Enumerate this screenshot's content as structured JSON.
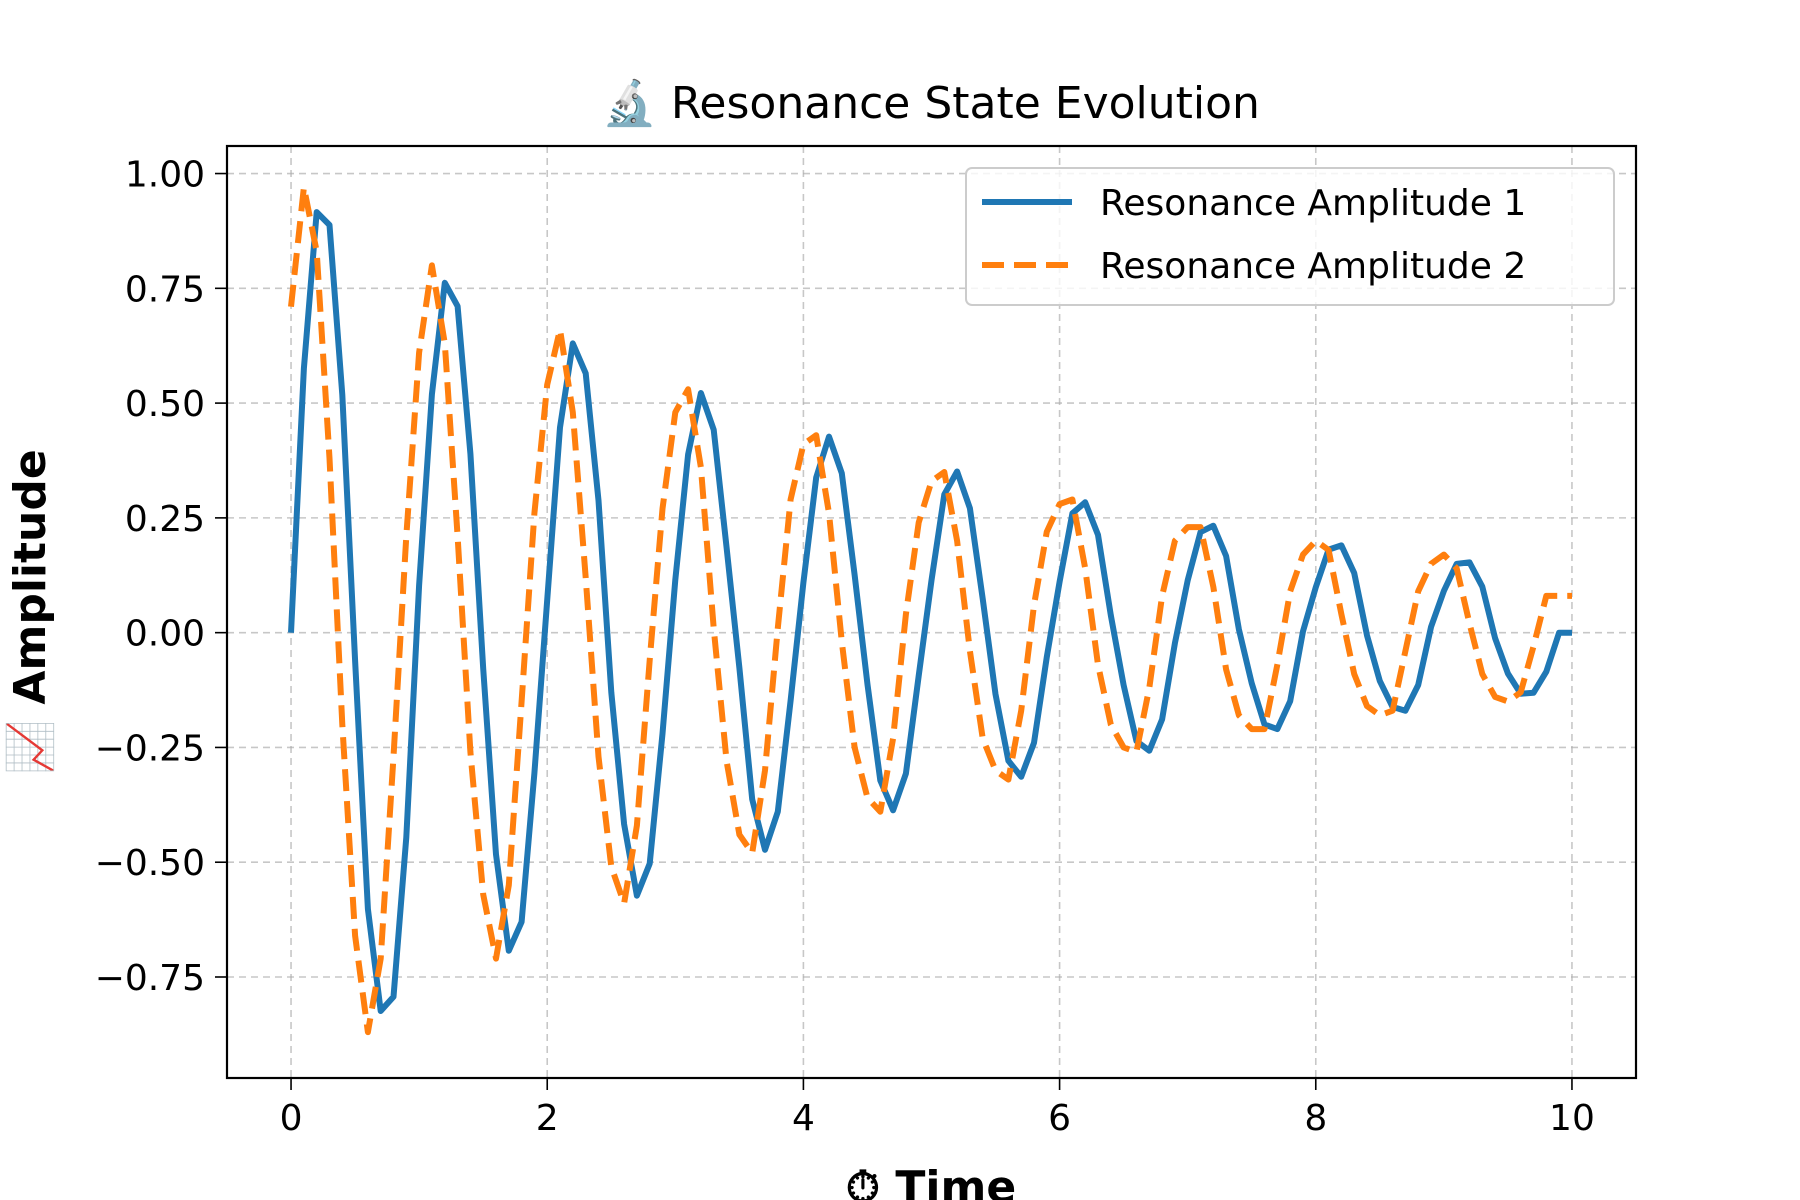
{
  "chart_data": {
    "type": "line",
    "title": "🔬 Resonance State Evolution",
    "xlabel": "⏱ Time",
    "ylabel": "📈 Amplitude",
    "xlim": [
      -0.5,
      10.5
    ],
    "ylim": [
      -0.97,
      1.06
    ],
    "x_ticks": [
      0,
      2,
      4,
      6,
      8,
      10
    ],
    "x_tick_labels": [
      "0",
      "2",
      "4",
      "6",
      "8",
      "10"
    ],
    "y_ticks": [
      -0.75,
      -0.5,
      -0.25,
      0.0,
      0.25,
      0.5,
      0.75,
      1.0
    ],
    "y_tick_labels": [
      "−0.75",
      "−0.50",
      "−0.25",
      "0.00",
      "0.25",
      "0.50",
      "0.75",
      "1.00"
    ],
    "grid": true,
    "legend_position": "top-right",
    "x": [
      0.0,
      0.1,
      0.2,
      0.3,
      0.4,
      0.5,
      0.6,
      0.7,
      0.8,
      0.9,
      1.0,
      1.1,
      1.2,
      1.3,
      1.4,
      1.5,
      1.6,
      1.7,
      1.8,
      1.9,
      2.0,
      2.1,
      2.2,
      2.3,
      2.4,
      2.5,
      2.6,
      2.7,
      2.8,
      2.9,
      3.0,
      3.1,
      3.2,
      3.3,
      3.4,
      3.5,
      3.6,
      3.7,
      3.8,
      3.9,
      4.0,
      4.1,
      4.2,
      4.3,
      4.4,
      4.5,
      4.6,
      4.7,
      4.8,
      4.9,
      5.0,
      5.1,
      5.2,
      5.3,
      5.4,
      5.5,
      5.6,
      5.7,
      5.8,
      5.9,
      6.0,
      6.1,
      6.2,
      6.3,
      6.4,
      6.5,
      6.6,
      6.7,
      6.8,
      6.9,
      7.0,
      7.1,
      7.2,
      7.3,
      7.4,
      7.5,
      7.6,
      7.7,
      7.8,
      7.9,
      8.0,
      8.1,
      8.2,
      8.3,
      8.4,
      8.5,
      8.6,
      8.7,
      8.8,
      8.9,
      9.0,
      9.1,
      9.2,
      9.3,
      9.4,
      9.5,
      9.6,
      9.7,
      9.8,
      9.9,
      10.0
    ],
    "series": [
      {
        "name": "Resonance Amplitude 1",
        "color": "#1f77b4",
        "style": "solid",
        "values": [
          0.0,
          0.576,
          0.916,
          0.888,
          0.518,
          -0.061,
          -0.602,
          -0.824,
          -0.793,
          -0.446,
          0.103,
          0.519,
          0.762,
          0.711,
          0.39,
          -0.078,
          -0.483,
          -0.693,
          -0.63,
          -0.306,
          0.071,
          0.447,
          0.63,
          0.565,
          0.288,
          -0.13,
          -0.417,
          -0.573,
          -0.503,
          -0.22,
          0.115,
          0.388,
          0.522,
          0.442,
          0.185,
          -0.077,
          -0.363,
          -0.473,
          -0.39,
          -0.148,
          0.109,
          0.338,
          0.427,
          0.347,
          0.126,
          -0.113,
          -0.322,
          -0.387,
          -0.307,
          -0.094,
          0.114,
          0.301,
          0.351,
          0.271,
          0.074,
          -0.134,
          -0.279,
          -0.314,
          -0.24,
          -0.053,
          0.111,
          0.26,
          0.284,
          0.213,
          0.038,
          -0.114,
          -0.236,
          -0.257,
          -0.189,
          -0.023,
          0.114,
          0.219,
          0.233,
          0.167,
          0.007,
          -0.11,
          -0.2,
          -0.21,
          -0.149,
          0.003,
          0.099,
          0.181,
          0.19,
          0.13,
          -0.006,
          -0.105,
          -0.162,
          -0.17,
          -0.114,
          0.013,
          0.091,
          0.15,
          0.153,
          0.1,
          -0.012,
          -0.089,
          -0.133,
          -0.131,
          -0.085,
          0.0,
          0.0
        ]
      },
      {
        "name": "Resonance Amplitude 2",
        "color": "#ff7f0e",
        "style": "dashed",
        "values": [
          0.71,
          0.97,
          0.83,
          0.38,
          -0.2,
          -0.66,
          -0.87,
          -0.71,
          -0.27,
          0.21,
          0.61,
          0.8,
          0.63,
          0.21,
          -0.26,
          -0.57,
          -0.71,
          -0.55,
          -0.15,
          0.26,
          0.54,
          0.66,
          0.48,
          0.12,
          -0.27,
          -0.51,
          -0.59,
          -0.42,
          -0.06,
          0.27,
          0.48,
          0.53,
          0.36,
          0.01,
          -0.28,
          -0.44,
          -0.48,
          -0.3,
          0.01,
          0.29,
          0.41,
          0.43,
          0.26,
          -0.02,
          -0.25,
          -0.36,
          -0.39,
          -0.23,
          0.04,
          0.24,
          0.33,
          0.35,
          0.2,
          -0.04,
          -0.23,
          -0.3,
          -0.32,
          -0.17,
          0.06,
          0.22,
          0.28,
          0.29,
          0.14,
          -0.07,
          -0.2,
          -0.25,
          -0.26,
          -0.12,
          0.08,
          0.2,
          0.23,
          0.23,
          0.1,
          -0.08,
          -0.18,
          -0.21,
          -0.21,
          -0.07,
          0.09,
          0.17,
          0.2,
          0.18,
          0.04,
          -0.09,
          -0.16,
          -0.18,
          -0.17,
          -0.04,
          0.09,
          0.15,
          0.17,
          0.14,
          0.02,
          -0.09,
          -0.14,
          -0.15,
          -0.13,
          -0.03,
          0.08,
          0.08,
          0.08
        ]
      }
    ]
  }
}
